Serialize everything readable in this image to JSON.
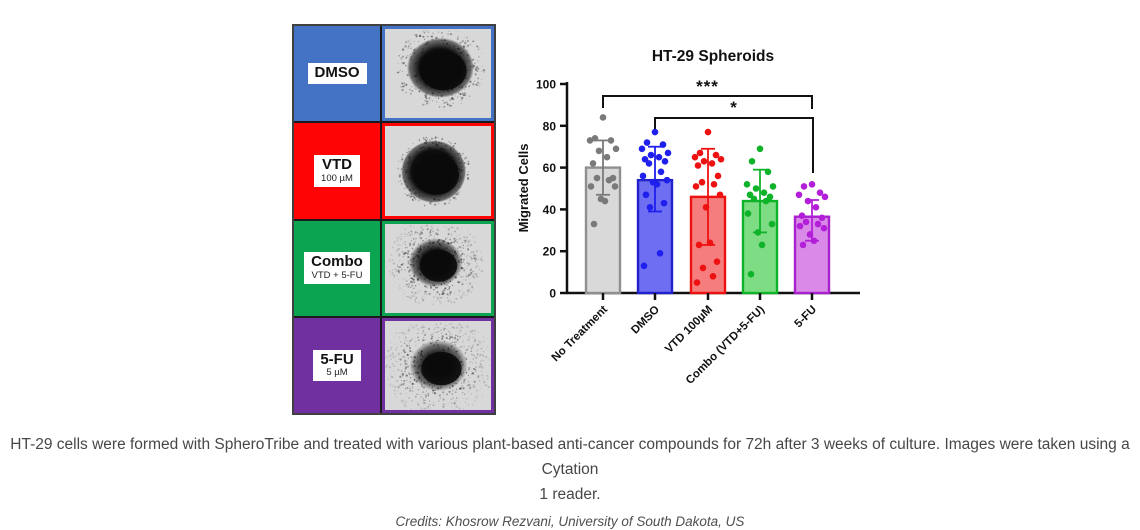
{
  "panel": {
    "rows": [
      {
        "label": "DMSO",
        "sublabel": "",
        "color": "#4472c4"
      },
      {
        "label": "VTD",
        "sublabel": "100 µM",
        "color": "#fe0404"
      },
      {
        "label": "Combo",
        "sublabel": "VTD + 5-FU",
        "color": "#0ba551"
      },
      {
        "label": "5-FU",
        "sublabel": "5 µM",
        "color": "#7030a0"
      }
    ]
  },
  "chart_data": {
    "type": "bar",
    "title": "HT-29 Spheroids",
    "xlabel": "",
    "ylabel": "Migrated  Cells",
    "ylim": [
      0,
      100
    ],
    "yticks": [
      0,
      20,
      40,
      60,
      80,
      100
    ],
    "grid": false,
    "legend": "none",
    "categories": [
      "No Treatment",
      "DMSO",
      "VTD 100µM",
      "Combo (VTD+5-FU)",
      "5-FU"
    ],
    "series": [
      {
        "name": "No Treatment",
        "mean": 60,
        "sd_low": 47,
        "sd_high": 73,
        "fill": "#d9d9d9",
        "stroke": "#8f8f8f",
        "point_color": "#7a7a7a",
        "points": [
          84,
          74,
          73,
          73,
          69,
          68,
          65,
          62,
          55,
          55,
          54,
          51,
          51,
          45,
          44,
          33
        ]
      },
      {
        "name": "DMSO",
        "mean": 54,
        "sd_low": 39,
        "sd_high": 70,
        "fill": "#6e6ef2",
        "stroke": "#2222cc",
        "point_color": "#1f1fee",
        "points": [
          77,
          72,
          71,
          69,
          67,
          66,
          65,
          64,
          63,
          62,
          58,
          56,
          54,
          53,
          52,
          47,
          43,
          41,
          19,
          13
        ]
      },
      {
        "name": "VTD 100µM",
        "mean": 46,
        "sd_low": 23,
        "sd_high": 69,
        "fill": "#f57d7d",
        "stroke": "#ee1111",
        "point_color": "#ee1111",
        "points": [
          77,
          67,
          66,
          65,
          64,
          63,
          62,
          61,
          56,
          53,
          52,
          51,
          47,
          41,
          24,
          23,
          15,
          12,
          8,
          5
        ]
      },
      {
        "name": "Combo (VTD+5-FU)",
        "mean": 44,
        "sd_low": 29,
        "sd_high": 59,
        "fill": "#7edc84",
        "stroke": "#0fb32a",
        "point_color": "#0fb32a",
        "points": [
          69,
          63,
          58,
          52,
          51,
          50,
          48,
          47,
          46,
          45,
          44,
          38,
          33,
          29,
          23,
          9
        ]
      },
      {
        "name": "5-FU",
        "mean": 36.5,
        "sd_low": 25,
        "sd_high": 44.5,
        "fill": "#d98ae8",
        "stroke": "#a821cf",
        "point_color": "#b31fd9",
        "points": [
          52,
          51,
          48,
          47,
          46,
          44,
          41,
          37,
          36,
          34,
          33,
          32,
          31,
          28,
          25,
          23
        ]
      }
    ],
    "significance": [
      {
        "label": "***",
        "from": 0,
        "to": 4
      },
      {
        "label": "*",
        "from": 1,
        "to": 4
      }
    ]
  },
  "caption": {
    "line1": "HT-29 cells were formed with SpheroTribe and treated with various plant-based anti-cancer compounds for 72h after 3 weeks of culture. Images were taken using a Cytation",
    "line2": "1 reader.",
    "credits": "Credits: Khosrow Rezvani, University of South Dakota, US"
  }
}
